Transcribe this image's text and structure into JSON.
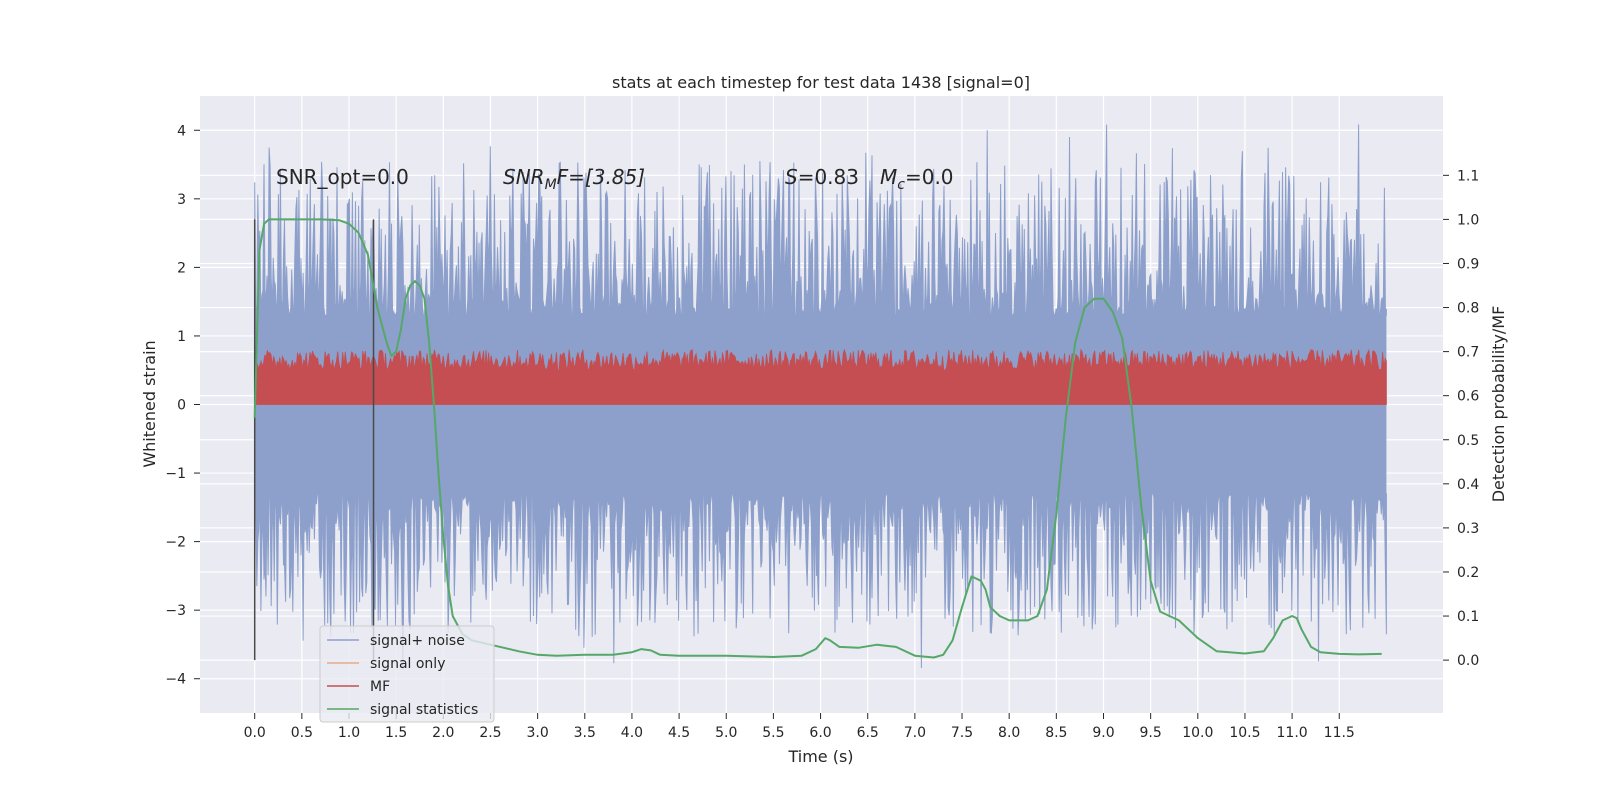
{
  "chart_data": {
    "type": "line",
    "title": "stats at each timestep for test data 1438 [signal=0]",
    "xlabel": "Time (s)",
    "ylabel": "Whitened strain",
    "ylabel_right": "Detection probability/MF",
    "xlim": [
      -0.58,
      12.6
    ],
    "ylim": [
      -4.5,
      4.5
    ],
    "ylim_right": [
      -0.12,
      1.28
    ],
    "x_ticks": [
      "0.0",
      "0.5",
      "1.0",
      "1.5",
      "2.0",
      "2.5",
      "3.0",
      "3.5",
      "4.0",
      "4.5",
      "5.0",
      "5.5",
      "6.0",
      "6.5",
      "7.0",
      "7.5",
      "8.0",
      "8.5",
      "9.0",
      "9.5",
      "10.0",
      "10.5",
      "11.0",
      "11.5"
    ],
    "y_ticks": [
      "4",
      "3",
      "2",
      "1",
      "0",
      "−1",
      "−2",
      "−3",
      "−4"
    ],
    "y_ticks_right": [
      "1.1",
      "1.0",
      "0.9",
      "0.8",
      "0.7",
      "0.6",
      "0.5",
      "0.4",
      "0.3",
      "0.2",
      "0.1",
      "0.0"
    ],
    "grid": true,
    "legend_position": "lower-left",
    "annotations": {
      "snr_opt": "SNR_opt=0.0",
      "snr_mf_prefix": "SNR",
      "snr_mf_sub": "M",
      "snr_mf_suffix": "F=[3.85]",
      "s_label": "S",
      "s_value": "=0.83",
      "mc_label": "M",
      "mc_sub": "c",
      "mc_value": "=0.0"
    },
    "vertical_lines_x": [
      0.0,
      1.26
    ],
    "noise_envelope": {
      "upper_core": 1.3,
      "lower_core": -1.3,
      "upper_peak_max": 4.1,
      "lower_peak_min": -4.1,
      "x_range": [
        0.0,
        12.0
      ]
    },
    "mf_band": {
      "lower": 0.0,
      "upper": 0.65
    },
    "series": [
      {
        "name": "signal+ noise",
        "color": "#8da0cb"
      },
      {
        "name": "signal only",
        "color": "#e8a98a"
      },
      {
        "name": "MF",
        "color": "#c44e52"
      },
      {
        "name": "signal statistics",
        "color": "#55a868",
        "axis": "right",
        "x": [
          0.0,
          0.05,
          0.1,
          0.15,
          0.2,
          0.3,
          0.5,
          0.7,
          0.9,
          1.0,
          1.1,
          1.2,
          1.3,
          1.4,
          1.45,
          1.5,
          1.55,
          1.6,
          1.65,
          1.7,
          1.75,
          1.8,
          1.85,
          1.9,
          1.95,
          2.0,
          2.05,
          2.1,
          2.2,
          2.3,
          2.5,
          2.8,
          3.0,
          3.2,
          3.5,
          3.8,
          4.0,
          4.1,
          4.2,
          4.3,
          4.5,
          5.0,
          5.5,
          5.8,
          5.95,
          6.05,
          6.1,
          6.2,
          6.4,
          6.6,
          6.8,
          7.0,
          7.2,
          7.3,
          7.4,
          7.5,
          7.6,
          7.7,
          7.75,
          7.8,
          7.9,
          8.0,
          8.2,
          8.3,
          8.4,
          8.5,
          8.6,
          8.7,
          8.8,
          8.9,
          9.0,
          9.1,
          9.2,
          9.3,
          9.4,
          9.5,
          9.6,
          9.7,
          9.8,
          10.0,
          10.2,
          10.5,
          10.7,
          10.8,
          10.9,
          11.0,
          11.05,
          11.1,
          11.2,
          11.3,
          11.5,
          11.7,
          11.95
        ],
        "values": [
          0.55,
          0.93,
          0.99,
          1.0,
          1.0,
          1.0,
          1.0,
          1.0,
          0.998,
          0.99,
          0.97,
          0.92,
          0.8,
          0.72,
          0.69,
          0.7,
          0.75,
          0.82,
          0.85,
          0.86,
          0.85,
          0.82,
          0.72,
          0.58,
          0.42,
          0.28,
          0.17,
          0.1,
          0.06,
          0.045,
          0.035,
          0.02,
          0.012,
          0.01,
          0.012,
          0.012,
          0.018,
          0.025,
          0.022,
          0.012,
          0.01,
          0.01,
          0.007,
          0.01,
          0.025,
          0.05,
          0.045,
          0.03,
          0.028,
          0.035,
          0.03,
          0.01,
          0.006,
          0.012,
          0.045,
          0.12,
          0.19,
          0.18,
          0.16,
          0.12,
          0.1,
          0.09,
          0.09,
          0.1,
          0.16,
          0.33,
          0.55,
          0.72,
          0.8,
          0.82,
          0.82,
          0.79,
          0.73,
          0.57,
          0.35,
          0.18,
          0.11,
          0.1,
          0.09,
          0.05,
          0.02,
          0.015,
          0.02,
          0.05,
          0.09,
          0.1,
          0.095,
          0.07,
          0.03,
          0.018,
          0.014,
          0.013,
          0.014
        ]
      }
    ]
  }
}
